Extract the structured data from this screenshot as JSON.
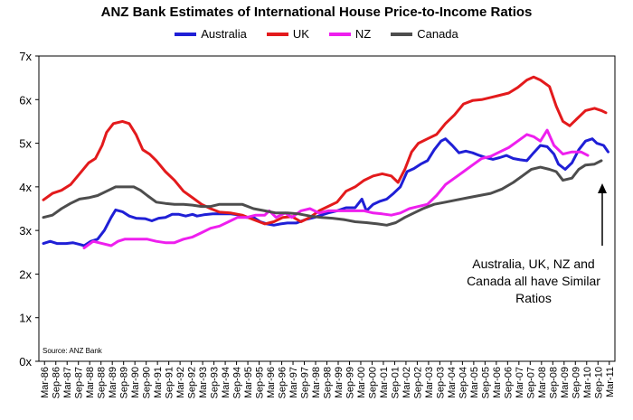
{
  "chart_data": {
    "type": "line",
    "title": "ANZ Bank Estimates of International House Price-to-Income Ratios",
    "xlabel": "",
    "ylabel": "",
    "ylim": [
      0,
      7
    ],
    "yticks": [
      "0x",
      "1x",
      "2x",
      "3x",
      "4x",
      "5x",
      "6x",
      "7x"
    ],
    "x_start_year": 1986,
    "xticks": [
      "Mar-86",
      "Sep-86",
      "Mar-87",
      "Sep-87",
      "Mar-88",
      "Sep-88",
      "Mar-89",
      "Sep-89",
      "Mar-90",
      "Sep-90",
      "Mar-91",
      "Sep-91",
      "Mar-92",
      "Sep-92",
      "Mar-93",
      "Sep-93",
      "Mar-94",
      "Sep-94",
      "Mar-95",
      "Sep-95",
      "Mar-96",
      "Sep-96",
      "Mar-97",
      "Sep-97",
      "Mar-98",
      "Sep-98",
      "Mar-99",
      "Sep-99",
      "Mar-00",
      "Sep-00",
      "Mar-01",
      "Sep-01",
      "Mar-02",
      "Sep-02",
      "Mar-03",
      "Sep-03",
      "Mar-04",
      "Sep-04",
      "Mar-05",
      "Sep-05",
      "Mar-06",
      "Sep-06",
      "Mar-07",
      "Sep-07",
      "Mar-08",
      "Sep-08",
      "Mar-09",
      "Sep-09",
      "Mar-10",
      "Sep-10",
      "Mar-11"
    ],
    "grid": false,
    "legend_position": "top",
    "series": [
      {
        "name": "Australia",
        "color": "#1f1fd6",
        "points": [
          [
            1986.2,
            2.7
          ],
          [
            1986.5,
            2.75
          ],
          [
            1986.8,
            2.7
          ],
          [
            1987.2,
            2.7
          ],
          [
            1987.5,
            2.72
          ],
          [
            1987.8,
            2.68
          ],
          [
            1988.0,
            2.65
          ],
          [
            1988.3,
            2.75
          ],
          [
            1988.6,
            2.8
          ],
          [
            1988.9,
            3.0
          ],
          [
            1989.2,
            3.3
          ],
          [
            1989.4,
            3.47
          ],
          [
            1989.7,
            3.43
          ],
          [
            1990.0,
            3.33
          ],
          [
            1990.3,
            3.28
          ],
          [
            1990.7,
            3.27
          ],
          [
            1991.0,
            3.22
          ],
          [
            1991.3,
            3.28
          ],
          [
            1991.6,
            3.3
          ],
          [
            1991.9,
            3.37
          ],
          [
            1992.2,
            3.37
          ],
          [
            1992.5,
            3.33
          ],
          [
            1992.8,
            3.37
          ],
          [
            1993.0,
            3.33
          ],
          [
            1993.3,
            3.36
          ],
          [
            1993.7,
            3.38
          ],
          [
            1994.0,
            3.38
          ],
          [
            1994.5,
            3.38
          ],
          [
            1994.9,
            3.35
          ],
          [
            1995.2,
            3.3
          ],
          [
            1995.5,
            3.3
          ],
          [
            1995.8,
            3.2
          ],
          [
            1996.1,
            3.15
          ],
          [
            1996.4,
            3.12
          ],
          [
            1996.7,
            3.15
          ],
          [
            1997.0,
            3.17
          ],
          [
            1997.4,
            3.17
          ],
          [
            1997.8,
            3.25
          ],
          [
            1998.2,
            3.3
          ],
          [
            1998.5,
            3.35
          ],
          [
            1998.8,
            3.4
          ],
          [
            1999.2,
            3.45
          ],
          [
            1999.6,
            3.52
          ],
          [
            2000.0,
            3.52
          ],
          [
            2000.3,
            3.72
          ],
          [
            2000.5,
            3.45
          ],
          [
            2000.8,
            3.6
          ],
          [
            2001.1,
            3.67
          ],
          [
            2001.4,
            3.72
          ],
          [
            2001.7,
            3.85
          ],
          [
            2002.0,
            4.0
          ],
          [
            2002.3,
            4.35
          ],
          [
            2002.6,
            4.42
          ],
          [
            2002.9,
            4.52
          ],
          [
            2003.2,
            4.6
          ],
          [
            2003.5,
            4.85
          ],
          [
            2003.8,
            5.05
          ],
          [
            2004.0,
            5.1
          ],
          [
            2004.3,
            4.95
          ],
          [
            2004.6,
            4.78
          ],
          [
            2004.9,
            4.82
          ],
          [
            2005.2,
            4.78
          ],
          [
            2005.5,
            4.72
          ],
          [
            2005.8,
            4.67
          ],
          [
            2006.1,
            4.63
          ],
          [
            2006.4,
            4.67
          ],
          [
            2006.7,
            4.72
          ],
          [
            2007.0,
            4.65
          ],
          [
            2007.3,
            4.62
          ],
          [
            2007.6,
            4.6
          ],
          [
            2007.9,
            4.78
          ],
          [
            2008.2,
            4.95
          ],
          [
            2008.5,
            4.92
          ],
          [
            2008.8,
            4.75
          ],
          [
            2009.0,
            4.52
          ],
          [
            2009.3,
            4.4
          ],
          [
            2009.6,
            4.55
          ],
          [
            2009.9,
            4.85
          ],
          [
            2010.2,
            5.05
          ],
          [
            2010.5,
            5.1
          ],
          [
            2010.7,
            5.0
          ],
          [
            2011.0,
            4.95
          ],
          [
            2011.2,
            4.8
          ]
        ]
      },
      {
        "name": "UK",
        "color": "#e31a1c",
        "points": [
          [
            1986.2,
            3.7
          ],
          [
            1986.6,
            3.85
          ],
          [
            1987.0,
            3.92
          ],
          [
            1987.4,
            4.05
          ],
          [
            1987.8,
            4.3
          ],
          [
            1988.2,
            4.55
          ],
          [
            1988.5,
            4.65
          ],
          [
            1988.8,
            4.95
          ],
          [
            1989.0,
            5.25
          ],
          [
            1989.3,
            5.45
          ],
          [
            1989.7,
            5.5
          ],
          [
            1990.0,
            5.45
          ],
          [
            1990.3,
            5.2
          ],
          [
            1990.6,
            4.85
          ],
          [
            1990.9,
            4.75
          ],
          [
            1991.2,
            4.6
          ],
          [
            1991.6,
            4.35
          ],
          [
            1992.0,
            4.15
          ],
          [
            1992.4,
            3.9
          ],
          [
            1992.8,
            3.75
          ],
          [
            1993.2,
            3.6
          ],
          [
            1993.6,
            3.5
          ],
          [
            1994.0,
            3.42
          ],
          [
            1994.5,
            3.4
          ],
          [
            1995.0,
            3.35
          ],
          [
            1995.5,
            3.25
          ],
          [
            1996.0,
            3.15
          ],
          [
            1996.4,
            3.2
          ],
          [
            1996.8,
            3.3
          ],
          [
            1997.2,
            3.32
          ],
          [
            1997.6,
            3.2
          ],
          [
            1998.0,
            3.3
          ],
          [
            1998.4,
            3.45
          ],
          [
            1998.8,
            3.55
          ],
          [
            1999.2,
            3.65
          ],
          [
            1999.6,
            3.9
          ],
          [
            2000.0,
            4.0
          ],
          [
            2000.4,
            4.15
          ],
          [
            2000.8,
            4.25
          ],
          [
            2001.2,
            4.3
          ],
          [
            2001.6,
            4.25
          ],
          [
            2001.9,
            4.1
          ],
          [
            2002.2,
            4.4
          ],
          [
            2002.5,
            4.8
          ],
          [
            2002.8,
            5.0
          ],
          [
            2003.2,
            5.1
          ],
          [
            2003.6,
            5.2
          ],
          [
            2004.0,
            5.45
          ],
          [
            2004.4,
            5.65
          ],
          [
            2004.8,
            5.9
          ],
          [
            2005.2,
            5.98
          ],
          [
            2005.6,
            6.0
          ],
          [
            2006.0,
            6.05
          ],
          [
            2006.4,
            6.1
          ],
          [
            2006.8,
            6.15
          ],
          [
            2007.2,
            6.28
          ],
          [
            2007.6,
            6.45
          ],
          [
            2007.9,
            6.52
          ],
          [
            2008.2,
            6.45
          ],
          [
            2008.6,
            6.3
          ],
          [
            2008.9,
            5.85
          ],
          [
            2009.2,
            5.5
          ],
          [
            2009.5,
            5.4
          ],
          [
            2009.8,
            5.55
          ],
          [
            2010.2,
            5.75
          ],
          [
            2010.6,
            5.8
          ],
          [
            2010.9,
            5.75
          ],
          [
            2011.1,
            5.7
          ]
        ]
      },
      {
        "name": "NZ",
        "color": "#ee1fee",
        "points": [
          [
            1988.0,
            2.6
          ],
          [
            1988.4,
            2.75
          ],
          [
            1988.8,
            2.7
          ],
          [
            1989.2,
            2.65
          ],
          [
            1989.5,
            2.75
          ],
          [
            1989.8,
            2.8
          ],
          [
            1990.3,
            2.8
          ],
          [
            1990.8,
            2.8
          ],
          [
            1991.2,
            2.75
          ],
          [
            1991.6,
            2.72
          ],
          [
            1992.0,
            2.72
          ],
          [
            1992.4,
            2.8
          ],
          [
            1992.8,
            2.85
          ],
          [
            1993.2,
            2.95
          ],
          [
            1993.6,
            3.05
          ],
          [
            1994.0,
            3.1
          ],
          [
            1994.4,
            3.2
          ],
          [
            1994.8,
            3.3
          ],
          [
            1995.2,
            3.3
          ],
          [
            1995.6,
            3.35
          ],
          [
            1996.0,
            3.35
          ],
          [
            1996.2,
            3.45
          ],
          [
            1996.5,
            3.3
          ],
          [
            1996.9,
            3.4
          ],
          [
            1997.2,
            3.3
          ],
          [
            1997.6,
            3.45
          ],
          [
            1998.0,
            3.5
          ],
          [
            1998.4,
            3.4
          ],
          [
            1998.8,
            3.45
          ],
          [
            1999.2,
            3.45
          ],
          [
            1999.6,
            3.45
          ],
          [
            2000.0,
            3.45
          ],
          [
            2000.4,
            3.45
          ],
          [
            2000.8,
            3.4
          ],
          [
            2001.2,
            3.38
          ],
          [
            2001.6,
            3.35
          ],
          [
            2002.0,
            3.4
          ],
          [
            2002.4,
            3.5
          ],
          [
            2002.8,
            3.55
          ],
          [
            2003.2,
            3.6
          ],
          [
            2003.6,
            3.8
          ],
          [
            2004.0,
            4.05
          ],
          [
            2004.4,
            4.2
          ],
          [
            2004.8,
            4.35
          ],
          [
            2005.2,
            4.5
          ],
          [
            2005.6,
            4.65
          ],
          [
            2006.0,
            4.7
          ],
          [
            2006.4,
            4.8
          ],
          [
            2006.8,
            4.9
          ],
          [
            2007.2,
            5.05
          ],
          [
            2007.6,
            5.2
          ],
          [
            2007.9,
            5.15
          ],
          [
            2008.2,
            5.05
          ],
          [
            2008.5,
            5.3
          ],
          [
            2008.8,
            4.95
          ],
          [
            2009.2,
            4.75
          ],
          [
            2009.6,
            4.8
          ],
          [
            2010.0,
            4.8
          ],
          [
            2010.3,
            4.72
          ]
        ]
      },
      {
        "name": "Canada",
        "color": "#4d4d4d",
        "points": [
          [
            1986.2,
            3.3
          ],
          [
            1986.6,
            3.35
          ],
          [
            1987.0,
            3.5
          ],
          [
            1987.4,
            3.62
          ],
          [
            1987.8,
            3.72
          ],
          [
            1988.2,
            3.75
          ],
          [
            1988.6,
            3.8
          ],
          [
            1989.0,
            3.9
          ],
          [
            1989.4,
            4.0
          ],
          [
            1989.8,
            4.0
          ],
          [
            1990.2,
            4.0
          ],
          [
            1990.5,
            3.92
          ],
          [
            1990.8,
            3.8
          ],
          [
            1991.2,
            3.65
          ],
          [
            1991.6,
            3.62
          ],
          [
            1992.0,
            3.6
          ],
          [
            1992.4,
            3.6
          ],
          [
            1992.8,
            3.58
          ],
          [
            1993.2,
            3.55
          ],
          [
            1993.6,
            3.55
          ],
          [
            1994.0,
            3.6
          ],
          [
            1994.5,
            3.6
          ],
          [
            1995.0,
            3.6
          ],
          [
            1995.5,
            3.5
          ],
          [
            1996.0,
            3.45
          ],
          [
            1996.5,
            3.4
          ],
          [
            1997.0,
            3.4
          ],
          [
            1997.5,
            3.38
          ],
          [
            1998.0,
            3.33
          ],
          [
            1998.5,
            3.3
          ],
          [
            1999.0,
            3.28
          ],
          [
            1999.5,
            3.25
          ],
          [
            2000.0,
            3.2
          ],
          [
            2000.5,
            3.18
          ],
          [
            2001.0,
            3.15
          ],
          [
            2001.4,
            3.12
          ],
          [
            2001.8,
            3.18
          ],
          [
            2002.2,
            3.3
          ],
          [
            2002.6,
            3.4
          ],
          [
            2003.0,
            3.5
          ],
          [
            2003.5,
            3.6
          ],
          [
            2004.0,
            3.65
          ],
          [
            2004.5,
            3.7
          ],
          [
            2005.0,
            3.75
          ],
          [
            2005.5,
            3.8
          ],
          [
            2006.0,
            3.85
          ],
          [
            2006.5,
            3.95
          ],
          [
            2007.0,
            4.1
          ],
          [
            2007.4,
            4.25
          ],
          [
            2007.8,
            4.4
          ],
          [
            2008.2,
            4.45
          ],
          [
            2008.6,
            4.4
          ],
          [
            2008.9,
            4.35
          ],
          [
            2009.2,
            4.15
          ],
          [
            2009.6,
            4.2
          ],
          [
            2009.9,
            4.4
          ],
          [
            2010.2,
            4.5
          ],
          [
            2010.6,
            4.52
          ],
          [
            2010.9,
            4.6
          ]
        ]
      }
    ],
    "annotation": {
      "line1": "Australia, UK, NZ and",
      "line2": "Canada all have Similar",
      "line3": "Ratios"
    },
    "source": "Source: ANZ Bank"
  }
}
